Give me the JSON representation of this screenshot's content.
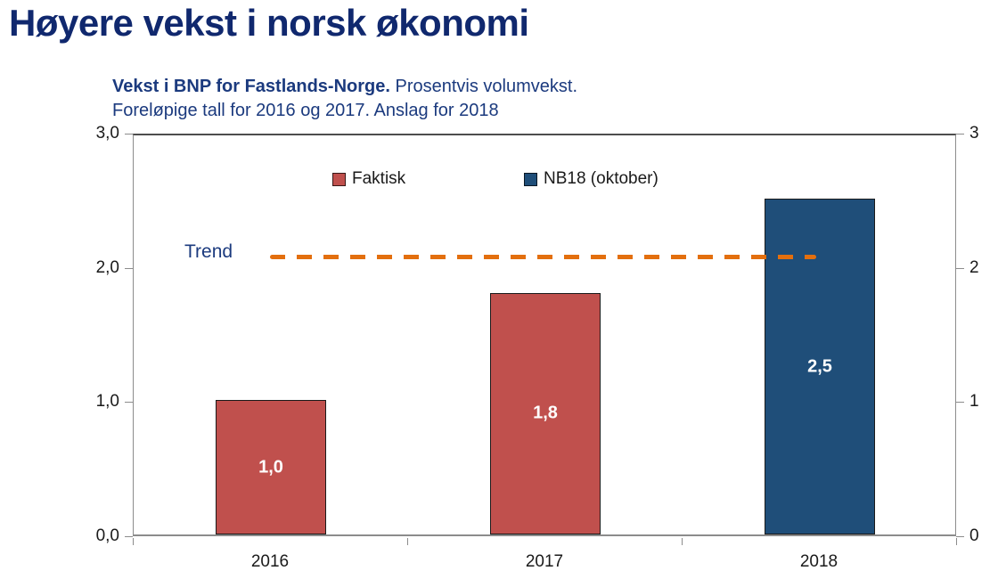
{
  "slide": {
    "title": "Høyere vekst i norsk økonomi",
    "title_color": "#10286e"
  },
  "subtitle": {
    "bold": "Vekst i BNP for Fastlands-Norge.",
    "regular": "Prosentvis volumvekst.",
    "line2": "Foreløpige tall for 2016 og 2017. Anslag for 2018",
    "color": "#1b3a7e"
  },
  "chart_data": {
    "type": "bar",
    "title": "Vekst i BNP for Fastlands-Norge. Prosentvis volumvekst. Foreløpige tall for 2016 og 2017. Anslag for 2018",
    "categories": [
      "2016",
      "2017",
      "2018"
    ],
    "values": [
      1.0,
      1.8,
      2.5
    ],
    "bar_value_labels": [
      "1,0",
      "1,8",
      "2,5"
    ],
    "bar_series": [
      "Faktisk",
      "Faktisk",
      "NB18 (oktober)"
    ],
    "series_colors": {
      "Faktisk": "#c0504d",
      "NB18 (oktober)": "#1f4e79"
    },
    "legend": [
      {
        "label": "Faktisk",
        "color": "#c0504d"
      },
      {
        "label": "NB18 (oktober)",
        "color": "#1f4e79"
      }
    ],
    "legend_position": "top-inside",
    "trend": {
      "label": "Trend",
      "value": 2.1,
      "color": "#e36f0e",
      "label_color": "#1b3a7e",
      "style": "dashed"
    },
    "ylim": [
      0,
      3
    ],
    "yticks_left": [
      {
        "v": 0,
        "label": "0,0"
      },
      {
        "v": 1,
        "label": "1,0"
      },
      {
        "v": 2,
        "label": "2,0"
      },
      {
        "v": 3,
        "label": "3,0"
      }
    ],
    "yticks_right": [
      {
        "v": 0,
        "label": "0"
      },
      {
        "v": 1,
        "label": "1"
      },
      {
        "v": 2,
        "label": "2"
      },
      {
        "v": 3,
        "label": "3"
      }
    ],
    "grid": false,
    "bar_label_color": "#ffffff",
    "axis_color": "#8c8c8c",
    "tick_label_color": "#1a1a1a"
  }
}
